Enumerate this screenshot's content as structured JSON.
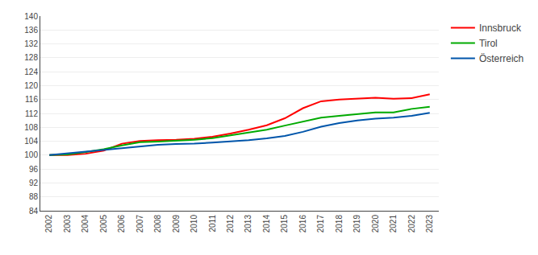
{
  "chart_data": {
    "type": "line",
    "x": [
      2002,
      2003,
      2004,
      2005,
      2006,
      2007,
      2008,
      2009,
      2010,
      2011,
      2012,
      2013,
      2014,
      2015,
      2016,
      2017,
      2018,
      2019,
      2020,
      2021,
      2022,
      2023
    ],
    "series": [
      {
        "name": "Innsbruck",
        "color": "#ff0000",
        "values": [
          100.0,
          100.0,
          100.4,
          101.3,
          103.3,
          104.1,
          104.3,
          104.4,
          104.7,
          105.3,
          106.2,
          107.3,
          108.6,
          110.6,
          113.5,
          115.5,
          116.0,
          116.3,
          116.5,
          116.2,
          116.4,
          117.5
        ]
      },
      {
        "name": "Tirol",
        "color": "#00aa00",
        "values": [
          100.0,
          100.2,
          100.9,
          101.7,
          102.8,
          103.7,
          103.9,
          104.1,
          104.4,
          104.9,
          105.7,
          106.4,
          107.3,
          108.5,
          109.6,
          110.8,
          111.3,
          111.8,
          112.3,
          112.3,
          113.3,
          113.9
        ]
      },
      {
        "name": "Österreich",
        "color": "#0055aa",
        "values": [
          100.0,
          100.5,
          101.0,
          101.6,
          102.1,
          102.6,
          103.0,
          103.2,
          103.3,
          103.6,
          103.9,
          104.3,
          104.8,
          105.5,
          106.7,
          108.2,
          109.2,
          110.0,
          110.5,
          110.8,
          111.3,
          112.2
        ]
      }
    ],
    "xlim": [
      2001.5,
      2023.5
    ],
    "xticks": [
      2002,
      2003,
      2004,
      2005,
      2006,
      2007,
      2008,
      2009,
      2010,
      2011,
      2012,
      2013,
      2014,
      2015,
      2016,
      2017,
      2018,
      2019,
      2020,
      2021,
      2022,
      2023
    ],
    "ylim": [
      84,
      140
    ],
    "yticks": [
      84,
      88,
      92,
      96,
      100,
      104,
      108,
      112,
      116,
      120,
      124,
      128,
      132,
      136,
      140
    ],
    "grid": "y",
    "legend": "right"
  }
}
